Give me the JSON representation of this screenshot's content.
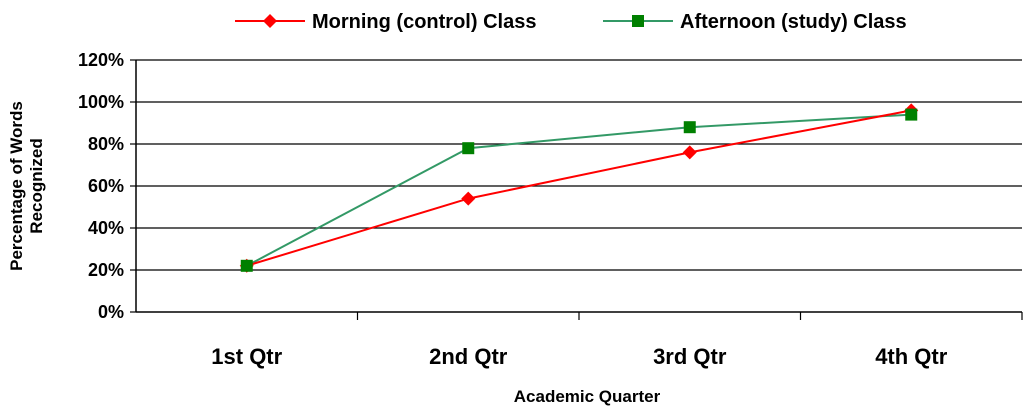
{
  "chart_data": {
    "type": "line",
    "title": "",
    "categories": [
      "1st Qtr",
      "2nd Qtr",
      "3rd Qtr",
      "4th Qtr"
    ],
    "series": [
      {
        "name": "Morning (control) Class",
        "values": [
          0.22,
          0.54,
          0.76,
          0.96
        ],
        "color": "#ff0000",
        "marker": "diamond"
      },
      {
        "name": "Afternoon (study) Class",
        "values": [
          0.22,
          0.78,
          0.88,
          0.94
        ],
        "color": "#008000",
        "marker": "square",
        "line_color": "#339966"
      }
    ],
    "xlabel": "Academic Quarter",
    "ylabel": [
      "Percentage of Words",
      "Recognized"
    ],
    "ylim": [
      0,
      1.2
    ],
    "yticks": [
      "0%",
      "20%",
      "40%",
      "60%",
      "80%",
      "100%",
      "120%"
    ],
    "grid": true,
    "legend_position": "top"
  }
}
